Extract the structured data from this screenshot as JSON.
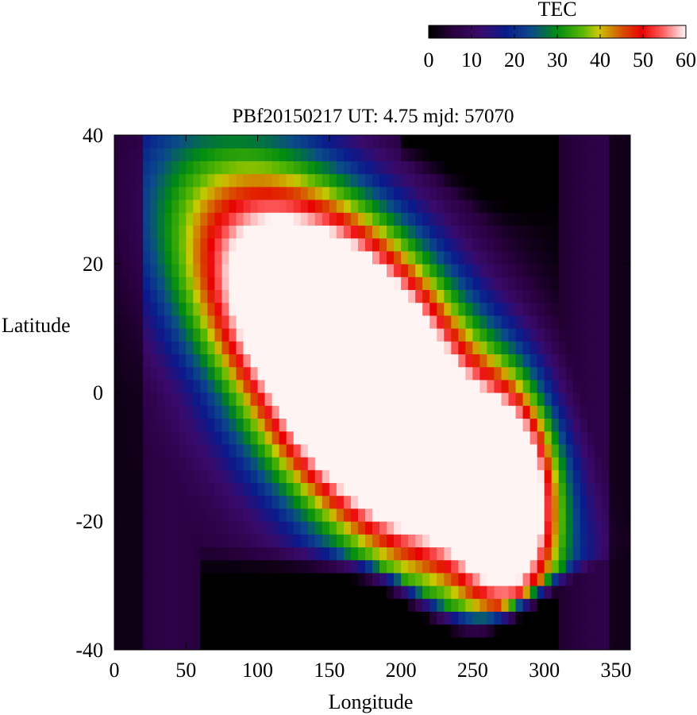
{
  "chart_data": {
    "type": "heatmap",
    "title": "PBf20150217  UT: 4.75  mjd: 57070",
    "xlabel": "Longitude",
    "ylabel": "Latitude",
    "xlim": [
      0,
      360
    ],
    "ylim": [
      -40,
      40
    ],
    "x_ticks": [
      "0",
      "50",
      "100",
      "150",
      "200",
      "250",
      "300",
      "350"
    ],
    "y_ticks": [
      "-40",
      "-20",
      "0",
      "20",
      "40"
    ],
    "x_tick_values": [
      0,
      50,
      100,
      150,
      200,
      250,
      300,
      350
    ],
    "y_tick_values": [
      -40,
      -20,
      0,
      20,
      40
    ],
    "cell_size_deg": {
      "lon": 5,
      "lat": 2
    },
    "colorbar": {
      "label": "TEC",
      "range": [
        0,
        60
      ],
      "ticks": [
        "0",
        "10",
        "20",
        "30",
        "40",
        "50",
        "60"
      ],
      "tick_values": [
        0,
        10,
        20,
        30,
        40,
        50,
        60
      ],
      "colorscale": [
        [
          0,
          "#000000"
        ],
        [
          0.1,
          "#2a0040"
        ],
        [
          0.2,
          "#3a0a6a"
        ],
        [
          0.3,
          "#0a1a8c"
        ],
        [
          0.4,
          "#0a4a8a"
        ],
        [
          0.5,
          "#008c10"
        ],
        [
          0.6,
          "#5ab800"
        ],
        [
          0.66,
          "#c8c800"
        ],
        [
          0.75,
          "#d85000"
        ],
        [
          0.83,
          "#e80000"
        ],
        [
          0.91,
          "#ff6060"
        ],
        [
          1.0,
          "#fff4f4"
        ]
      ]
    },
    "field_description_values": {
      "night_lon_center": 10,
      "daytime_peak_lon": 175,
      "daytime_peak_lat": 0,
      "secondary_peak_lon": 270,
      "secondary_peak_lat": -15,
      "max_tec": 60
    }
  }
}
